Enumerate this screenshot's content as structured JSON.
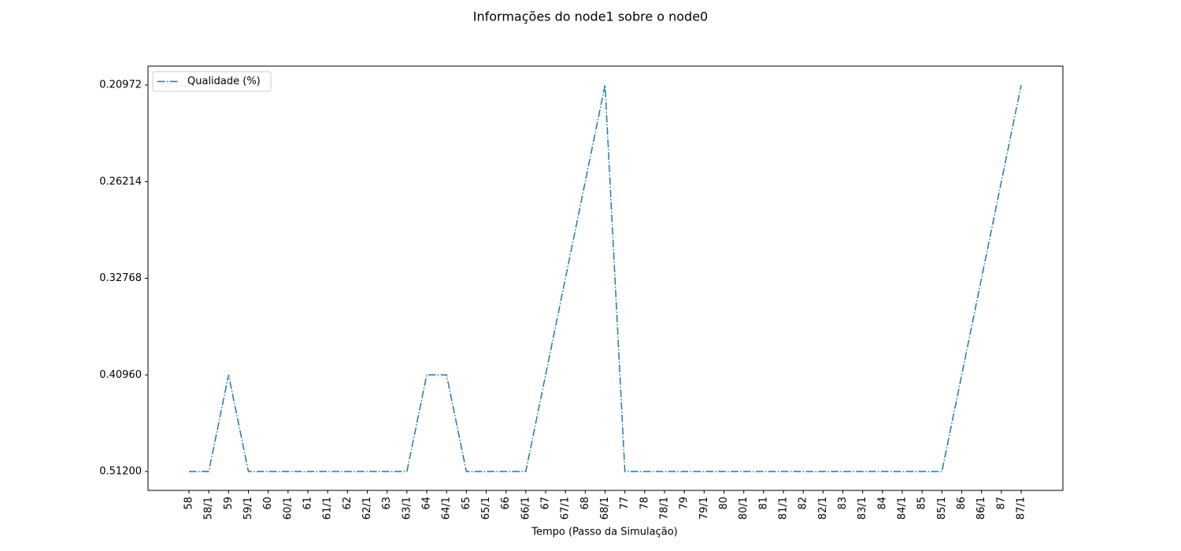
{
  "chart_data": {
    "type": "line",
    "title": "Informações do node1 sobre o node0",
    "x_label": "Tempo (Passo da Simulação)",
    "y_scale": "categorical",
    "linestyle": "dashdot",
    "legend": "upper left",
    "categories": [
      "58",
      "58/1",
      "59",
      "59/1",
      "60",
      "60/1",
      "61",
      "61/1",
      "62",
      "62/1",
      "63",
      "63/1",
      "64",
      "64/1",
      "65",
      "65/1",
      "66",
      "66/1",
      "67",
      "67/1",
      "68",
      "68/1",
      "77",
      "78",
      "78/1",
      "79",
      "79/1",
      "80",
      "80/1",
      "81",
      "81/1",
      "82",
      "82/1",
      "83",
      "83/1",
      "84",
      "84/1",
      "85",
      "85/1",
      "86",
      "86/1",
      "87",
      "87/1"
    ],
    "yticks": [
      {
        "value": 0.512,
        "label": "0.51200"
      },
      {
        "value": 0.4096,
        "label": "0.40960"
      },
      {
        "value": 0.32768,
        "label": "0.32768"
      },
      {
        "value": 0.26214,
        "label": "0.26214"
      },
      {
        "value": 0.20972,
        "label": "0.20972"
      }
    ],
    "series": [
      {
        "name": "Qualidade (%)",
        "color": "#1f77b4",
        "values": [
          0.512,
          0.512,
          0.4096,
          0.512,
          0.512,
          0.512,
          0.512,
          0.512,
          0.512,
          0.512,
          0.512,
          0.512,
          0.4096,
          0.4096,
          0.512,
          0.512,
          0.512,
          0.512,
          0.4096,
          0.32768,
          0.26214,
          0.20972,
          0.512,
          0.512,
          0.512,
          0.512,
          0.512,
          0.512,
          0.512,
          0.512,
          0.512,
          0.512,
          0.512,
          0.512,
          0.512,
          0.512,
          0.512,
          0.512,
          0.512,
          0.4096,
          0.32768,
          0.26214,
          0.20972
        ]
      }
    ]
  }
}
